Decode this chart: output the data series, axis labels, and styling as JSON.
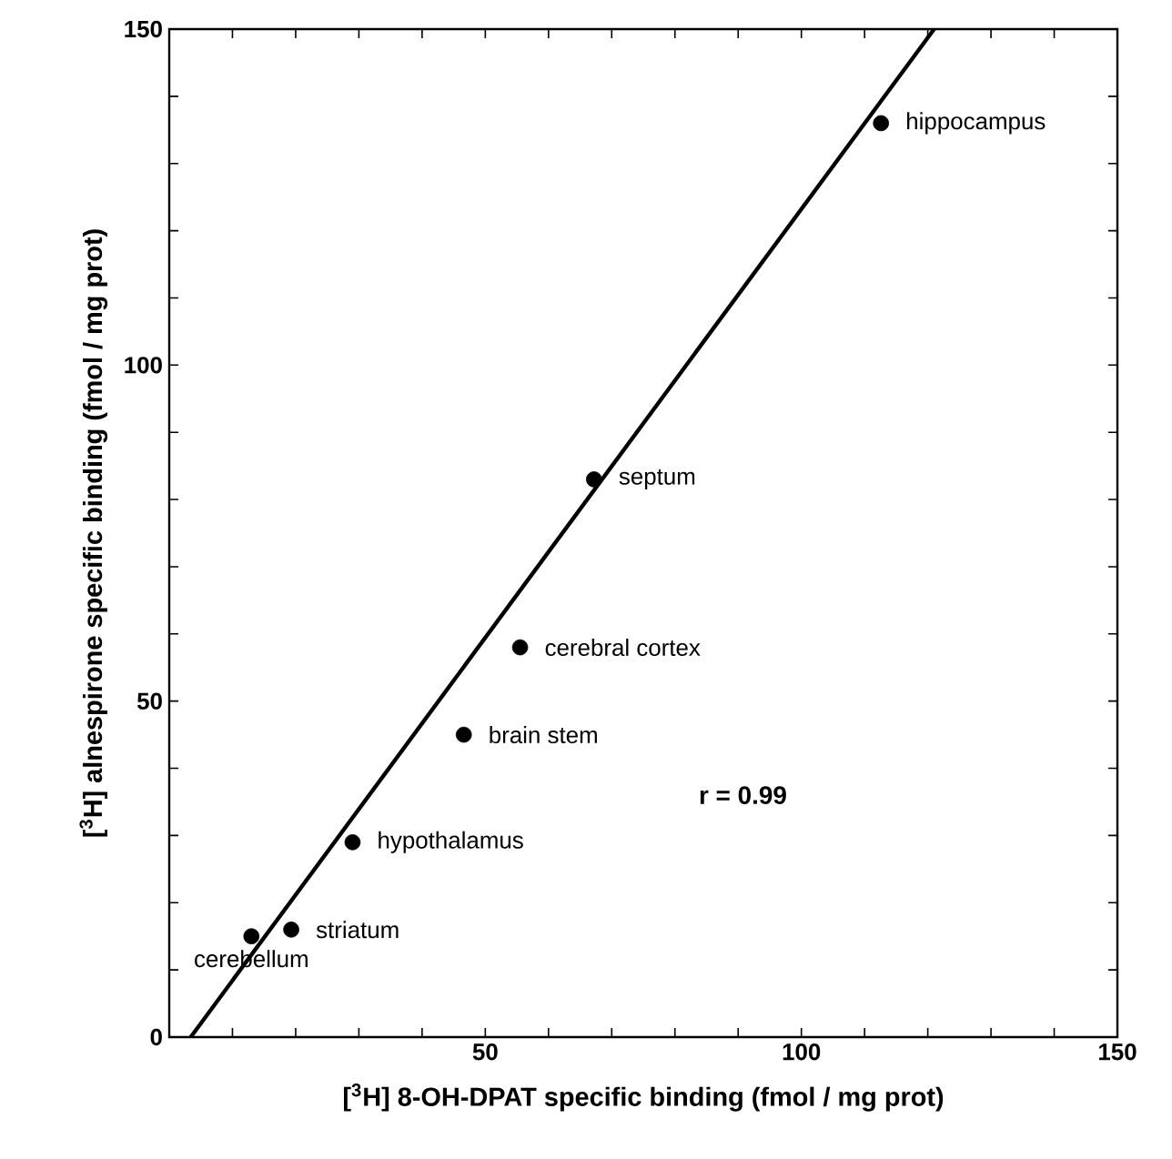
{
  "chart_data": {
    "type": "scatter",
    "xlabel": "[$^{3}$H] 8-OH-DPAT specific binding (fmol / mg prot)",
    "ylabel": "[$^{3}$H] alnespirone specific binding (fmol / mg prot)",
    "series": [
      {
        "color": "#000000",
        "x": [
          13,
          19.3,
          29,
          46.6,
          55.5,
          67.2,
          112.6
        ],
        "values": [
          15,
          16,
          29,
          45,
          58,
          83,
          136
        ]
      },
      {
        "type": "line",
        "color": "#000000",
        "line_style": "solid",
        "x": [
          3.4,
          121
        ],
        "values": [
          0,
          150
        ]
      }
    ],
    "annotations": [
      {
        "text": "cerebellum",
        "x": 13,
        "y": 15
      },
      {
        "text": "striatum",
        "x": 19.3,
        "y": 16
      },
      {
        "text": "hypothalamus",
        "x": 29,
        "y": 29
      },
      {
        "text": "brain stem",
        "x": 46.6,
        "y": 45
      },
      {
        "text": "cerebral cortex",
        "x": 55.5,
        "y": 58
      },
      {
        "text": "septum",
        "x": 67.2,
        "y": 83
      },
      {
        "text": "hippocampus",
        "x": 112.6,
        "y": 136
      },
      "r = 0.99"
    ],
    "xlim": [
      0,
      150
    ],
    "ylim": [
      0,
      150
    ],
    "xticks": [
      {
        "value": 0,
        "label": null
      },
      {
        "value": 10,
        "label": null
      },
      {
        "value": 20,
        "label": null
      },
      {
        "value": 30,
        "label": null
      },
      {
        "value": 40,
        "label": null
      },
      50,
      {
        "value": 60,
        "label": null
      },
      {
        "value": 70,
        "label": null
      },
      {
        "value": 80,
        "label": null
      },
      {
        "value": 90,
        "label": null
      },
      100,
      {
        "value": 110,
        "label": null
      },
      {
        "value": 120,
        "label": null
      },
      {
        "value": 130,
        "label": null
      },
      {
        "value": 140,
        "label": null
      },
      150
    ],
    "yticks": [
      0,
      {
        "value": 10,
        "label": null
      },
      {
        "value": 20,
        "label": null
      },
      {
        "value": 30,
        "label": null
      },
      {
        "value": 40,
        "label": null
      },
      50,
      {
        "value": 60,
        "label": null
      },
      {
        "value": 70,
        "label": null
      },
      {
        "value": 80,
        "label": null
      },
      {
        "value": 90,
        "label": null
      },
      100,
      {
        "value": 110,
        "label": null
      },
      {
        "value": 120,
        "label": null
      },
      {
        "value": 130,
        "label": null
      },
      {
        "value": 140,
        "label": null
      },
      150
    ],
    "grid": false,
    "legend": false
  }
}
